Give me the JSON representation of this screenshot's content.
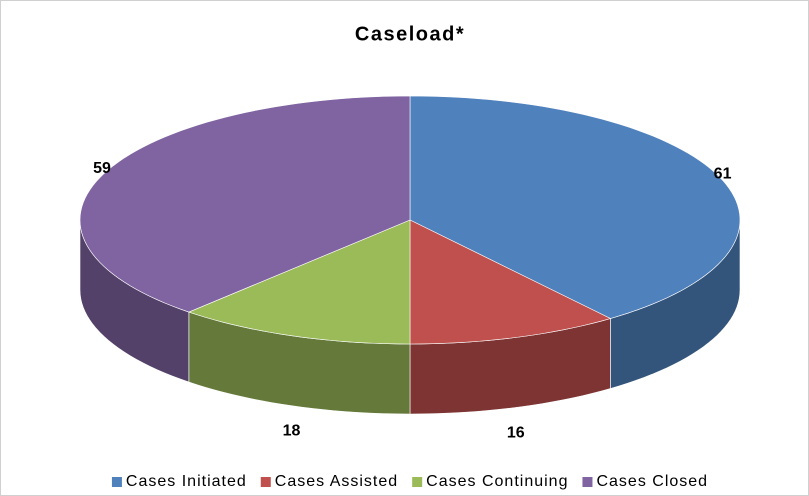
{
  "chart_data": {
    "type": "pie",
    "title": "Caseload*",
    "categories": [
      "Cases Initiated",
      "Cases Assisted",
      "Cases Continuing",
      "Cases Closed"
    ],
    "values": [
      61,
      16,
      18,
      59
    ],
    "colors": [
      "#4f81bd",
      "#c0504d",
      "#9bbb59",
      "#8064a2"
    ],
    "legend": "bottom"
  }
}
